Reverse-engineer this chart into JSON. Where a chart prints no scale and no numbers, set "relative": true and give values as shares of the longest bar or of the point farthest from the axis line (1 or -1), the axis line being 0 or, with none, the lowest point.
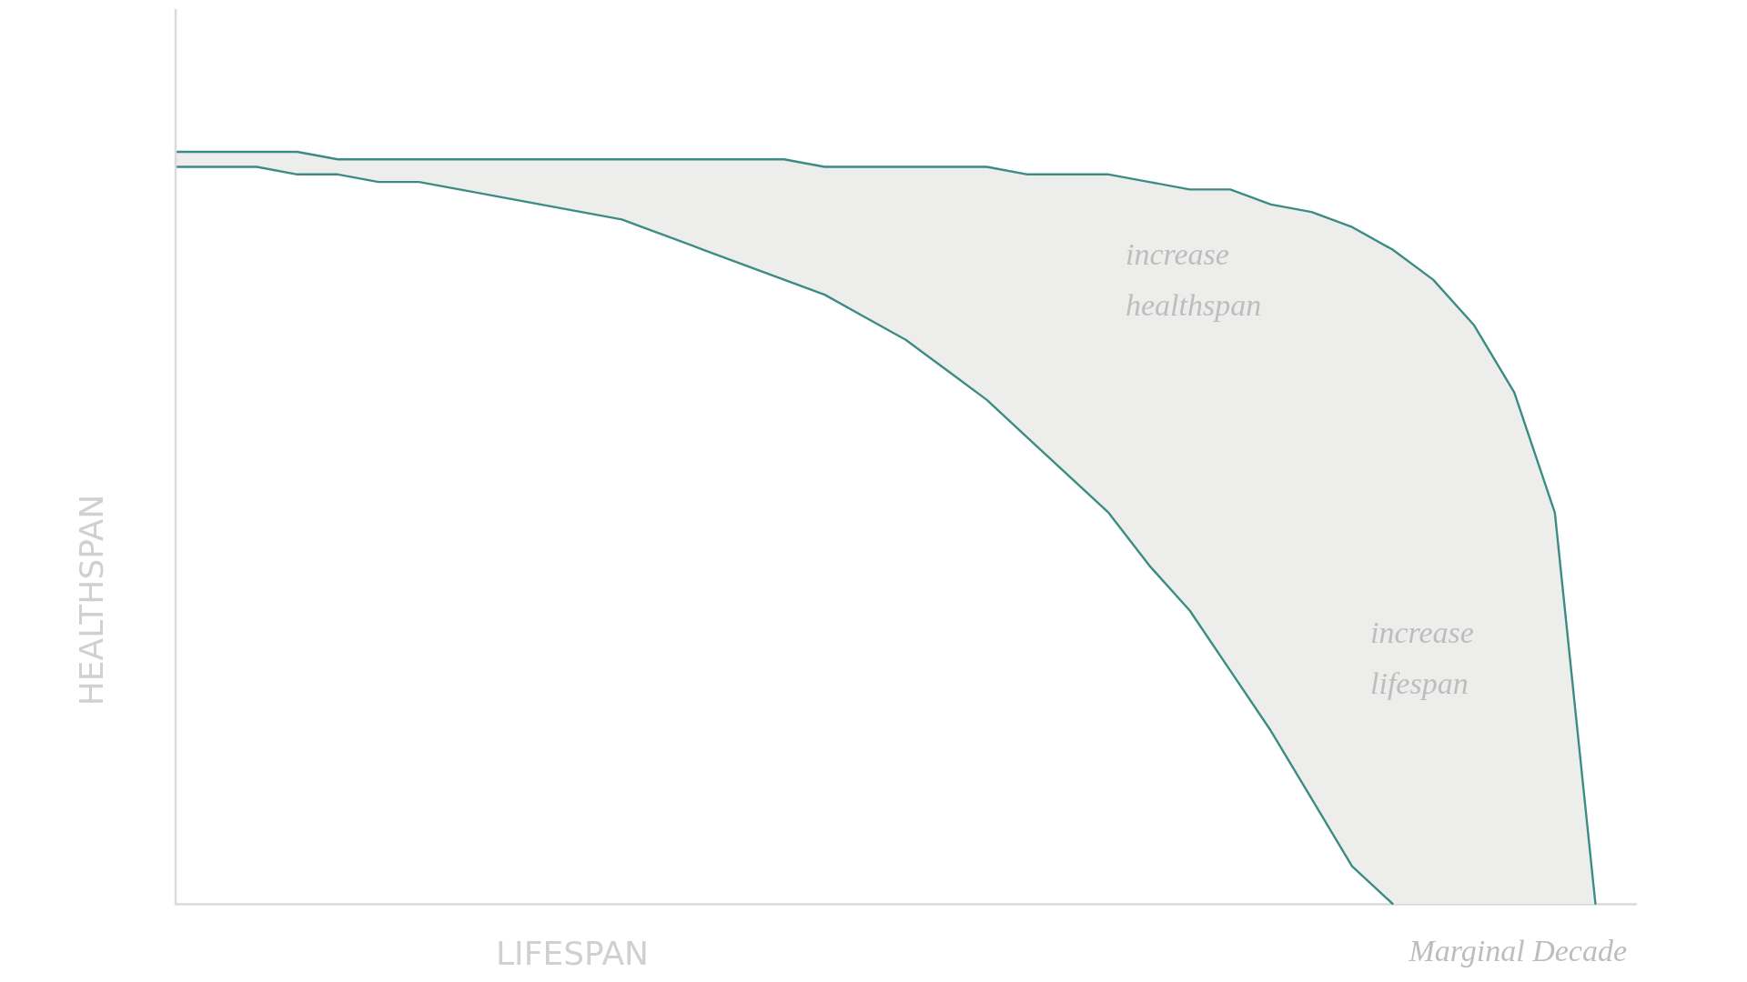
{
  "chart_data": {
    "type": "line",
    "relative": true,
    "xlabel": "LIFESPAN",
    "ylabel": "HEALTHSPAN",
    "marker": "none",
    "line_style": "solid",
    "categories": [
      null,
      null,
      null,
      null,
      null,
      null,
      null,
      null,
      null,
      null,
      null,
      null,
      null,
      null,
      null,
      null,
      null,
      null,
      null,
      null,
      null,
      null,
      null,
      null,
      null,
      null,
      null,
      null,
      null,
      null,
      null,
      null,
      null,
      null,
      null,
      null,
      null
    ],
    "series": [
      {
        "type": "line",
        "color": "#3d8c84",
        "values": [
          0.98,
          0.98,
          0.98,
          0.97,
          0.97,
          0.96,
          0.96,
          0.95,
          0.94,
          0.93,
          0.92,
          0.91,
          0.89,
          0.87,
          0.85,
          0.83,
          0.81,
          0.78,
          0.75,
          0.71,
          0.67,
          0.62,
          0.57,
          0.52,
          0.45,
          0.39,
          0.31,
          0.23,
          0.14,
          0.05,
          0,
          null,
          null,
          null,
          null,
          null,
          null
        ]
      },
      {
        "type": "area",
        "color": "#3d8c84",
        "values": [
          1,
          1,
          1,
          1,
          0.99,
          0.99,
          0.99,
          0.99,
          0.99,
          0.99,
          0.99,
          0.99,
          0.99,
          0.99,
          0.99,
          0.99,
          0.98,
          0.98,
          0.98,
          0.98,
          0.98,
          0.97,
          0.97,
          0.97,
          0.96,
          0.95,
          0.95,
          0.93,
          0.92,
          0.9,
          0.87,
          0.83,
          0.77,
          0.68,
          0.52,
          0,
          null
        ]
      }
    ],
    "annotations": [
      "increase healthspan",
      "increase lifespan",
      "Marginal Decade"
    ]
  }
}
